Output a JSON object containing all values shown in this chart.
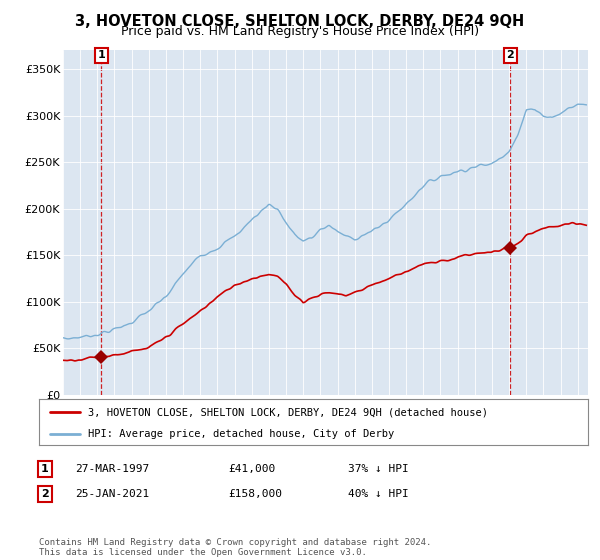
{
  "title": "3, HOVETON CLOSE, SHELTON LOCK, DERBY, DE24 9QH",
  "subtitle": "Price paid vs. HM Land Registry's House Price Index (HPI)",
  "plot_bg_color": "#dce6f1",
  "ylim": [
    0,
    370000
  ],
  "yticks": [
    0,
    50000,
    100000,
    150000,
    200000,
    250000,
    300000,
    350000
  ],
  "ytick_labels": [
    "£0",
    "£50K",
    "£100K",
    "£150K",
    "£200K",
    "£250K",
    "£300K",
    "£350K"
  ],
  "x_start_year": 1995,
  "x_end_year": 2025,
  "sale1_year": 1997.23,
  "sale1_price": 41000,
  "sale2_year": 2021.07,
  "sale2_price": 158000,
  "sale1_label": "1",
  "sale2_label": "2",
  "legend1": "3, HOVETON CLOSE, SHELTON LOCK, DERBY, DE24 9QH (detached house)",
  "legend2": "HPI: Average price, detached house, City of Derby",
  "table_row1": [
    "1",
    "27-MAR-1997",
    "£41,000",
    "37% ↓ HPI"
  ],
  "table_row2": [
    "2",
    "25-JAN-2021",
    "£158,000",
    "40% ↓ HPI"
  ],
  "footer": "Contains HM Land Registry data © Crown copyright and database right 2024.\nThis data is licensed under the Open Government Licence v3.0.",
  "line_color_red": "#cc0000",
  "line_color_blue": "#7bafd4",
  "marker_color": "#990000",
  "dashed_line_color": "#cc0000",
  "title_fontsize": 10.5,
  "subtitle_fontsize": 9
}
